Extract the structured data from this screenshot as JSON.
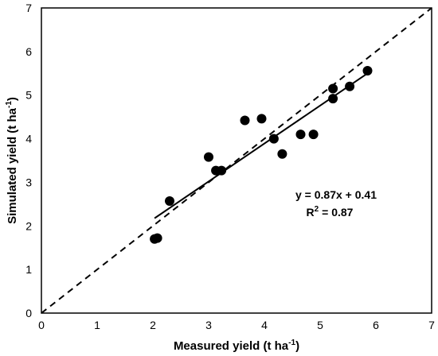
{
  "chart_data": {
    "type": "scatter",
    "xlabel": "Measured yield (t ha",
    "xlabel_sup": "-1",
    "xlabel_end": ")",
    "ylabel": "Simulated yield (t ha",
    "ylabel_sup": "-1",
    "ylabel_end": ")",
    "xlim": [
      0,
      7
    ],
    "ylim": [
      0,
      7
    ],
    "xticks": [
      "0",
      "1",
      "2",
      "3",
      "4",
      "5",
      "6",
      "7"
    ],
    "yticks": [
      "0",
      "1",
      "2",
      "3",
      "4",
      "5",
      "6",
      "7"
    ],
    "grid": false,
    "series": [
      {
        "points": [
          [
            2.03,
            1.7
          ],
          [
            2.08,
            1.72
          ],
          [
            2.3,
            2.57
          ],
          [
            3.0,
            3.58
          ],
          [
            3.13,
            3.27
          ],
          [
            3.23,
            3.27
          ],
          [
            3.65,
            4.42
          ],
          [
            3.95,
            4.46
          ],
          [
            4.17,
            4.0
          ],
          [
            4.32,
            3.65
          ],
          [
            4.65,
            4.1
          ],
          [
            4.88,
            4.1
          ],
          [
            5.23,
            5.15
          ],
          [
            5.23,
            4.92
          ],
          [
            5.53,
            5.2
          ],
          [
            5.85,
            5.56
          ]
        ]
      }
    ],
    "fit_line": {
      "slope": 0.87,
      "intercept": 0.41,
      "x_range": [
        2.03,
        5.85
      ]
    },
    "reference_line": {
      "style": "dashed",
      "from": [
        0,
        0
      ],
      "to": [
        7,
        7
      ]
    },
    "annotations": {
      "equation": "y = 0.87x + 0.41",
      "r2_label": "R",
      "r2_sup": "2",
      "r2_value": " = 0.87"
    }
  }
}
